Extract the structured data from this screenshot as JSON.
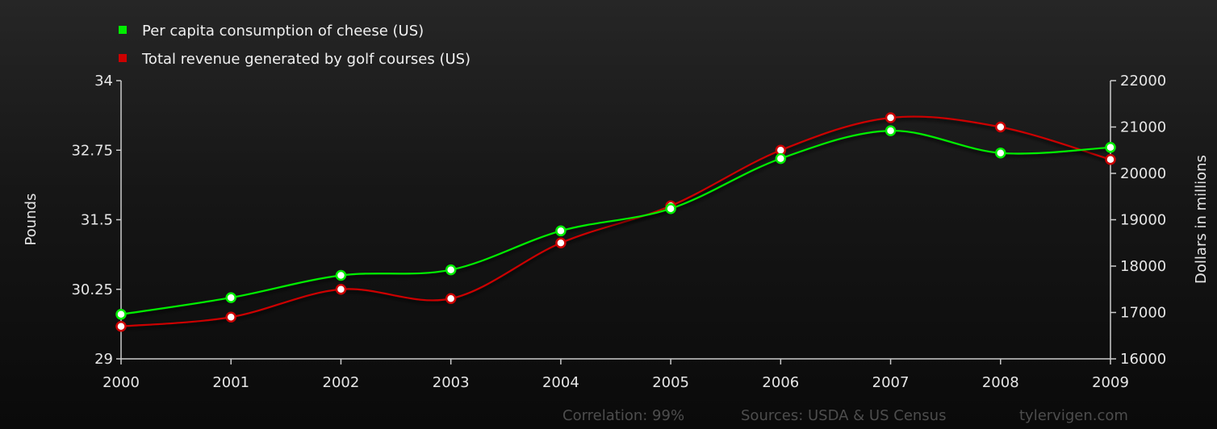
{
  "colors": {
    "cheese": "#00ee00",
    "golf": "#cc0000",
    "axis": "#cccccc",
    "text": "#e6e6e6",
    "footer": "#4d4d4d"
  },
  "footer": {
    "correlation": "Correlation: 99%",
    "sources": "Sources: USDA & US Census",
    "site": "tylervigen.com"
  },
  "chart_data": {
    "type": "line",
    "x": [
      "2000",
      "2001",
      "2002",
      "2003",
      "2004",
      "2005",
      "2006",
      "2007",
      "2008",
      "2009"
    ],
    "series": [
      {
        "name": "Per capita consumption of cheese (US)",
        "axis": "left",
        "color": "#00ee00",
        "values": [
          29.8,
          30.1,
          30.5,
          30.6,
          31.3,
          31.7,
          32.6,
          33.1,
          32.7,
          32.8
        ]
      },
      {
        "name": "Total revenue generated by golf courses (US)",
        "axis": "right",
        "color": "#cc0000",
        "values": [
          16700,
          16900,
          17500,
          17300,
          18500,
          19300,
          20500,
          21200,
          21000,
          20300
        ]
      }
    ],
    "y_left": {
      "label": "Pounds",
      "ylim": [
        29,
        34
      ],
      "ticks": [
        29,
        30.25,
        31.5,
        32.75,
        34
      ],
      "tick_labels": [
        "29",
        "30.25",
        "31.5",
        "32.75",
        "34"
      ]
    },
    "y_right": {
      "label": "Dollars in millions",
      "ylim": [
        16000,
        22000
      ],
      "ticks": [
        16000,
        17000,
        18000,
        19000,
        20000,
        21000,
        22000
      ],
      "tick_labels": [
        "16000",
        "17000",
        "18000",
        "19000",
        "20000",
        "21000",
        "22000"
      ]
    },
    "grid": false,
    "legend": "top-left"
  }
}
